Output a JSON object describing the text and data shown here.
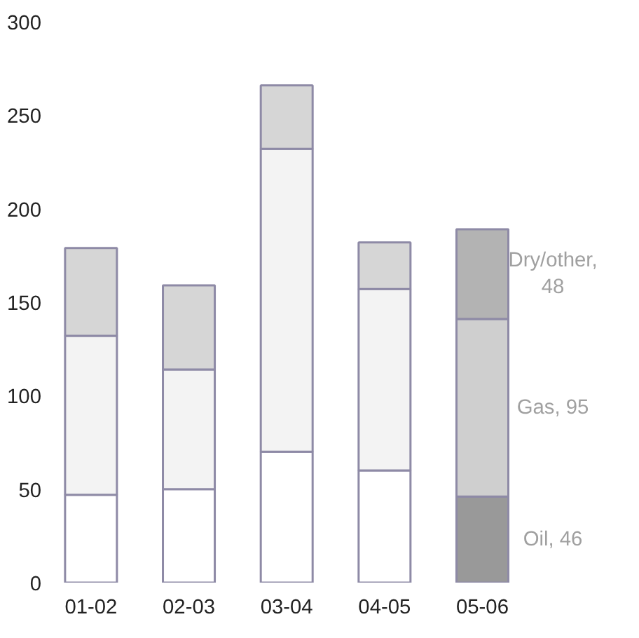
{
  "chart_data": {
    "type": "bar",
    "stacked": true,
    "categories": [
      "01-02",
      "02-03",
      "03-04",
      "04-05",
      "05-06"
    ],
    "series": [
      {
        "colors": [
          "#ffffff",
          "#ffffff",
          "#ffffff",
          "#ffffff",
          "#999999"
        ],
        "values": [
          47,
          50,
          70,
          60,
          46
        ]
      },
      {
        "colors": [
          "#f3f3f3",
          "#f3f3f3",
          "#f3f3f3",
          "#f3f3f3",
          "#cfcfcf"
        ],
        "values": [
          85,
          64,
          162,
          97,
          95
        ]
      },
      {
        "colors": [
          "#d6d6d6",
          "#d6d6d6",
          "#d6d6d6",
          "#d6d6d6",
          "#b3b3b3"
        ],
        "values": [
          47,
          45,
          34,
          25,
          48
        ]
      }
    ],
    "ylim": [
      0,
      300
    ],
    "yticks": [
      0,
      50,
      100,
      150,
      200,
      250,
      300
    ],
    "grid": false,
    "annotations": [
      "Oil, 46",
      "Gas, 95",
      "Dry/other, 48"
    ]
  }
}
